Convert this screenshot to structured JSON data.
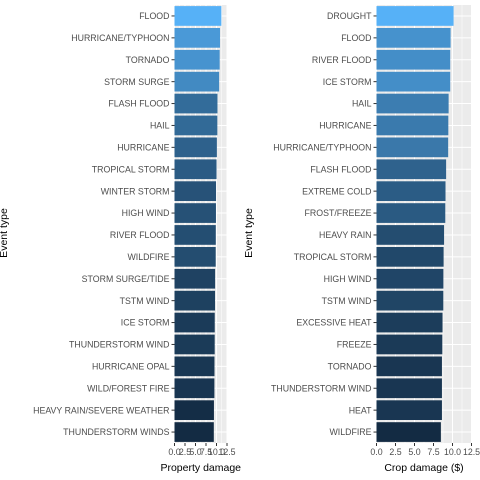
{
  "chart_data": [
    {
      "type": "bar",
      "orientation": "horizontal",
      "xlabel": "Property damage",
      "ylabel": "Event type",
      "xlim": [
        0,
        12.5
      ],
      "x_ticks": [
        "0.0",
        "2.5",
        "5.0",
        "7.5",
        "10.0",
        "12.5"
      ],
      "grid": true,
      "categories": [
        "FLOOD",
        "HURRICANE/TYPHOON",
        "TORNADO",
        "STORM SURGE",
        "FLASH FLOOD",
        "HAIL",
        "HURRICANE",
        "TROPICAL STORM",
        "WINTER STORM",
        "HIGH WIND",
        "RIVER FLOOD",
        "WILDFIRE",
        "STORM SURGE/TIDE",
        "TSTM WIND",
        "ICE STORM",
        "THUNDERSTORM WIND",
        "HURRICANE OPAL",
        "WILD/FOREST FIRE",
        "HEAVY RAIN/SEVERE WEATHER",
        "THUNDERSTORM WINDS"
      ],
      "values": [
        11.16,
        10.84,
        10.76,
        10.63,
        10.23,
        10.2,
        10.09,
        10.01,
        9.89,
        9.87,
        9.83,
        9.81,
        9.67,
        9.65,
        9.58,
        9.57,
        9.52,
        9.5,
        9.39,
        9.36
      ],
      "color_low": "#132B43",
      "color_high": "#56B1F7"
    },
    {
      "type": "bar",
      "orientation": "horizontal",
      "xlabel": "Crop damage ($)",
      "ylabel": "Event type",
      "xlim": [
        0,
        12.5
      ],
      "x_ticks": [
        "0.0",
        "2.5",
        "5.0",
        "7.5",
        "10.0",
        "12.5"
      ],
      "grid": true,
      "categories": [
        "DROUGHT",
        "FLOOD",
        "RIVER FLOOD",
        "ICE STORM",
        "HAIL",
        "HURRICANE",
        "HURRICANE/TYPHOON",
        "FLASH FLOOD",
        "EXTREME COLD",
        "FROST/FREEZE",
        "HEAVY RAIN",
        "TROPICAL STORM",
        "HIGH WIND",
        "TSTM WIND",
        "EXCESSIVE HEAT",
        "FREEZE",
        "TORNADO",
        "THUNDERSTORM WIND",
        "HEAT",
        "WILDFIRE"
      ],
      "values": [
        10.14,
        9.75,
        9.7,
        9.7,
        9.49,
        9.45,
        9.43,
        9.16,
        9.08,
        9.05,
        8.89,
        8.83,
        8.8,
        8.79,
        8.69,
        8.66,
        8.61,
        8.61,
        8.61,
        8.47
      ],
      "color_low": "#132B43",
      "color_high": "#56B1F7"
    }
  ]
}
